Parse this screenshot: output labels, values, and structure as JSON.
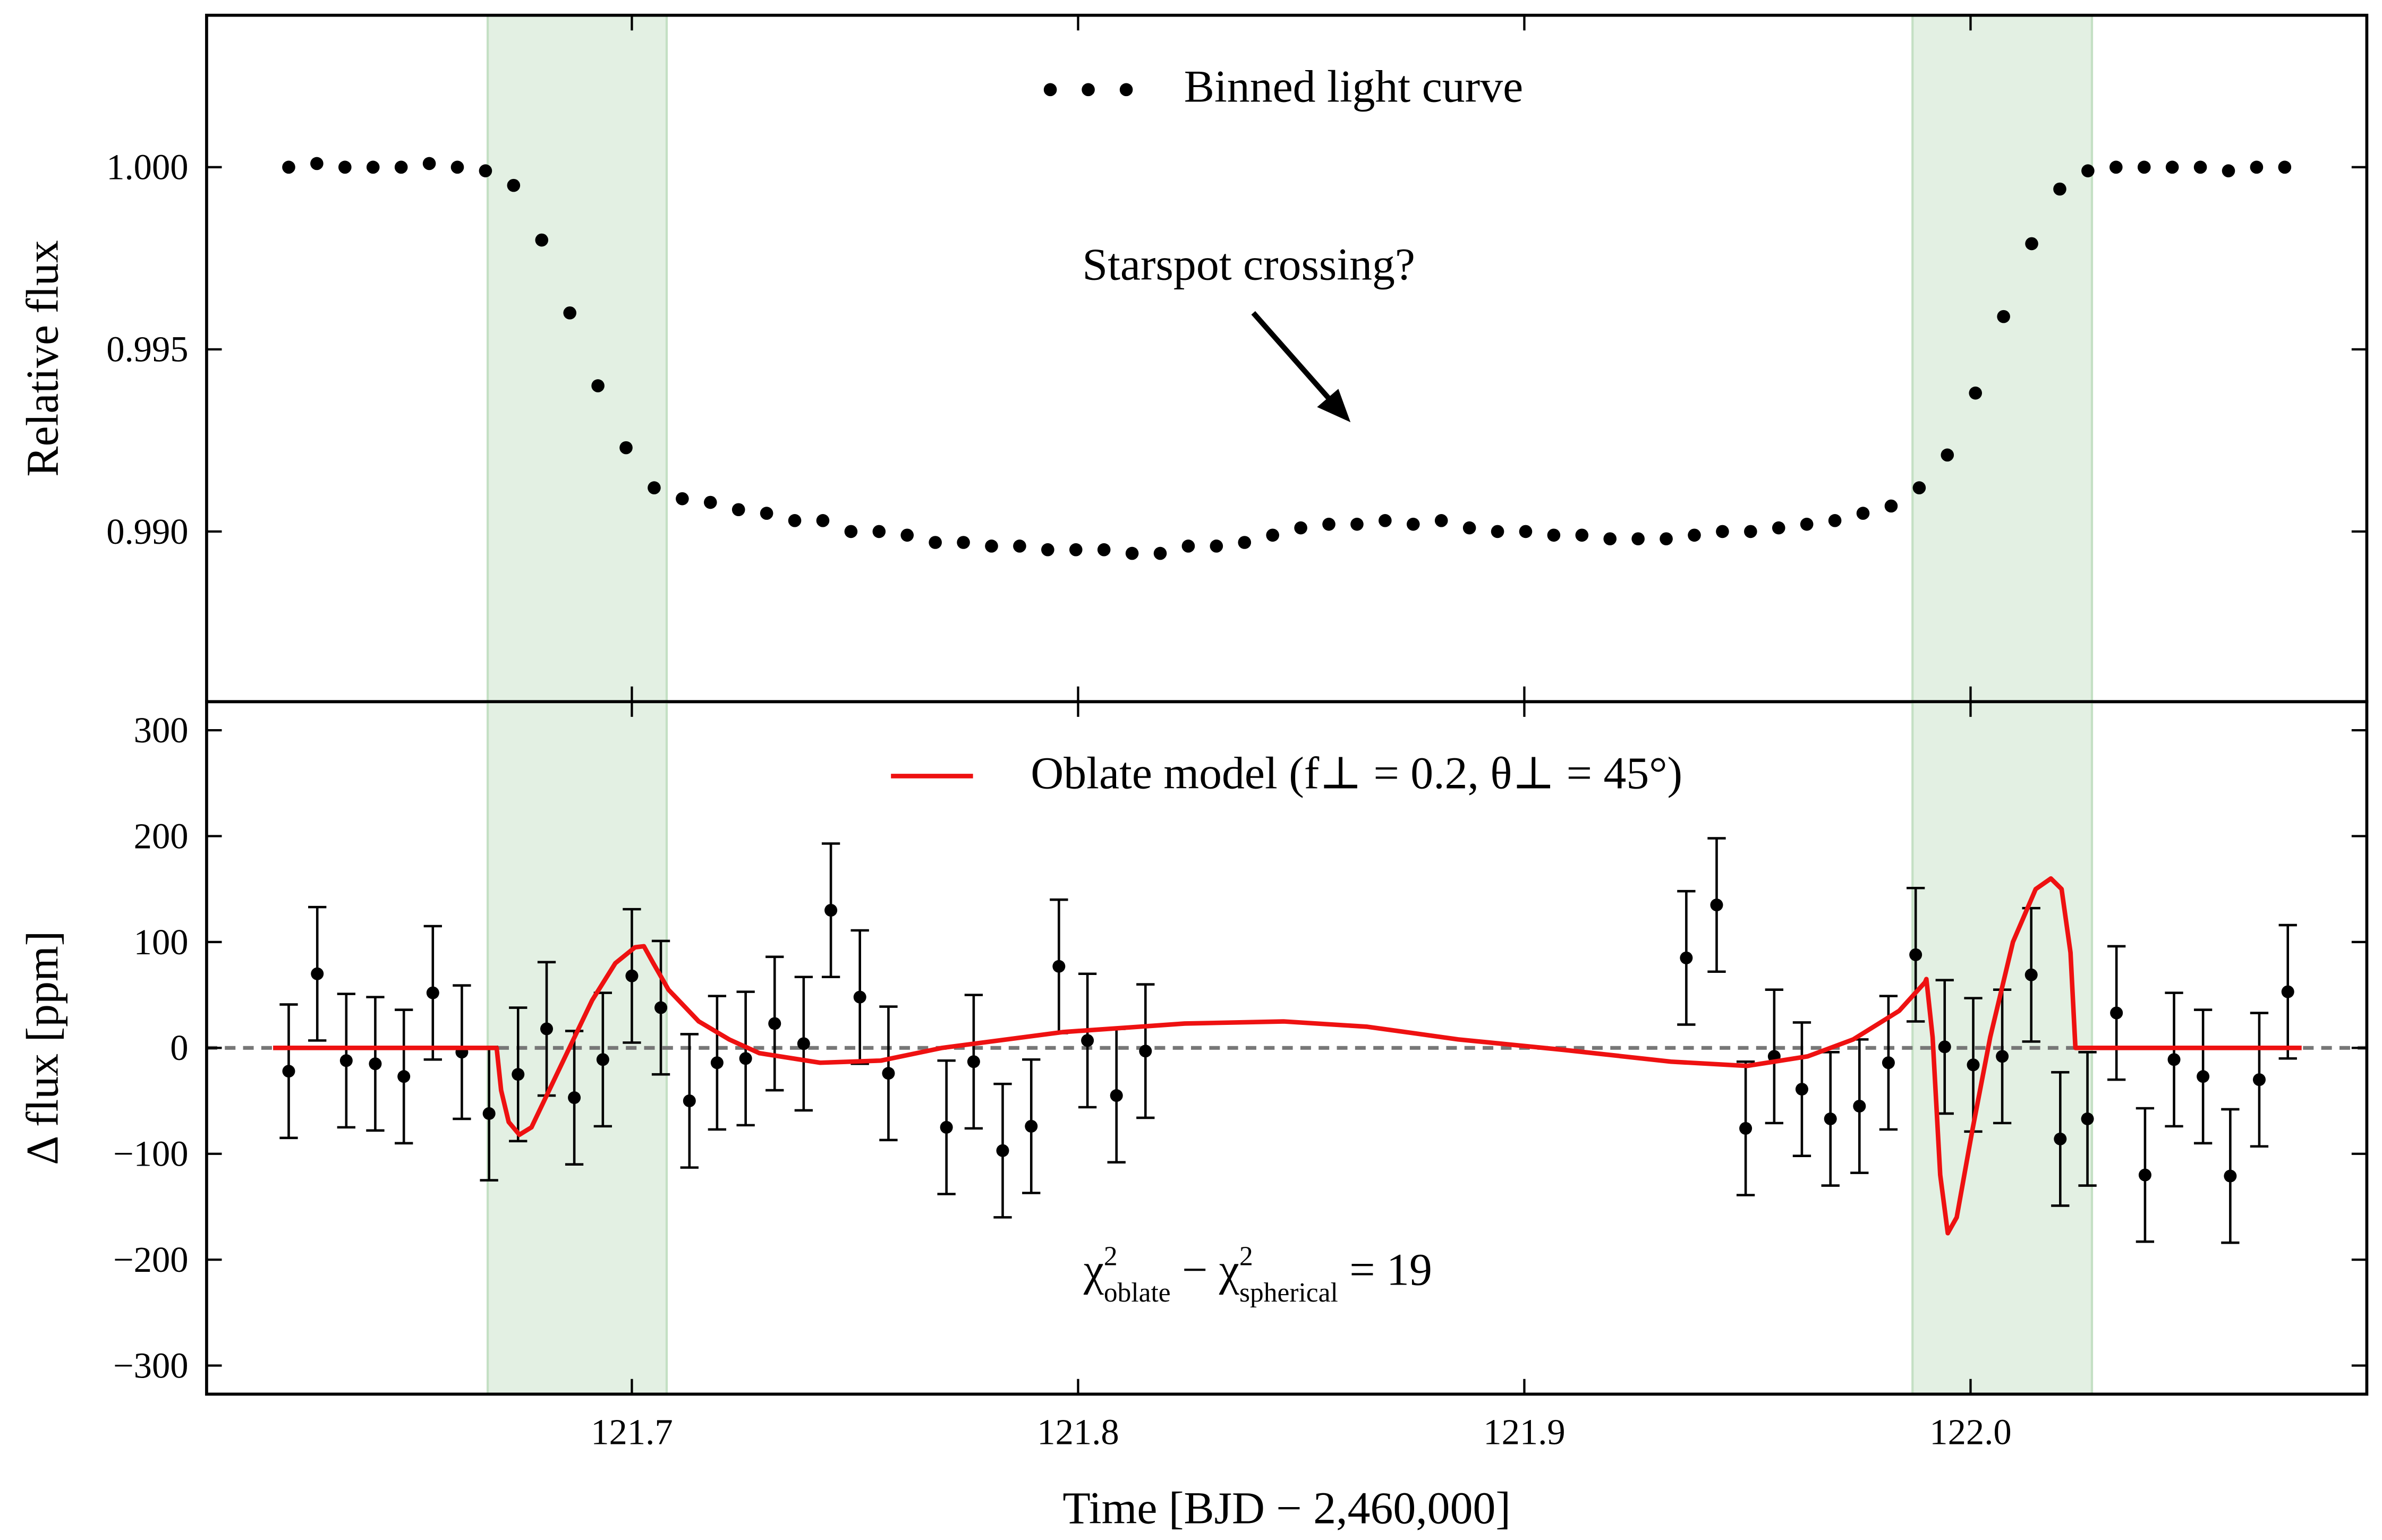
{
  "chart_data": [
    {
      "type": "scatter",
      "ylabel": "Relative flux",
      "xlim": [
        121.6047,
        122.0888
      ],
      "xticks": [
        121.7,
        121.8,
        121.9,
        122.0
      ],
      "ylim": [
        0.98533,
        1.00417
      ],
      "yticks": [
        {
          "value": 0.99,
          "label": "0.990"
        },
        {
          "value": 0.995,
          "label": "0.995"
        },
        {
          "value": 1.0,
          "label": "1.000"
        }
      ],
      "shaded_regions": [
        [
          121.6677,
          121.7078
        ],
        [
          121.987,
          122.0272
        ]
      ],
      "shade_color": "#e3f0e3",
      "legend": "upper center",
      "annotation": "Starspot crossing?",
      "series": [
        {
          "name": "Binned light curve",
          "type": "scatter",
          "color": "#000000",
          "x": [
            121.6231,
            121.6294,
            121.6357,
            121.642,
            121.6483,
            121.6546,
            121.6609,
            121.6672,
            121.6735,
            121.6798,
            121.6861,
            121.6924,
            121.6987,
            121.705,
            121.7113,
            121.7176,
            121.7239,
            121.7302,
            121.7365,
            121.7428,
            121.7491,
            121.7554,
            121.7617,
            121.768,
            121.7743,
            121.7806,
            121.7869,
            121.7932,
            121.7995,
            121.8058,
            121.8121,
            121.8184,
            121.8247,
            121.831,
            121.8373,
            121.8436,
            121.8499,
            121.8562,
            121.8625,
            121.8688,
            121.8751,
            121.8814,
            121.8877,
            121.894,
            121.9003,
            121.9066,
            121.9129,
            121.9192,
            121.9255,
            121.9318,
            121.9381,
            121.9444,
            121.9507,
            121.957,
            121.9633,
            121.9696,
            121.9759,
            121.9822,
            121.9885,
            121.9948,
            122.0011,
            122.0074,
            122.0137,
            122.02,
            122.0263,
            122.0326,
            122.0389,
            122.0452,
            122.0515,
            122.0578,
            122.0641,
            122.0704
          ],
          "values": [
            1.0,
            1.0001,
            1.0,
            1.0,
            1.0,
            1.0001,
            1.0,
            0.9999,
            0.9995,
            0.998,
            0.996,
            0.994,
            0.9923,
            0.9912,
            0.9909,
            0.9908,
            0.9906,
            0.9905,
            0.9903,
            0.9903,
            0.99,
            0.99,
            0.9899,
            0.9897,
            0.9897,
            0.9896,
            0.9896,
            0.9895,
            0.9895,
            0.9895,
            0.9894,
            0.9894,
            0.9896,
            0.9896,
            0.9897,
            0.9899,
            0.9901,
            0.9902,
            0.9902,
            0.9903,
            0.9902,
            0.9903,
            0.9901,
            0.99,
            0.99,
            0.9899,
            0.9899,
            0.9898,
            0.9898,
            0.9898,
            0.9899,
            0.99,
            0.99,
            0.9901,
            0.9902,
            0.9903,
            0.9905,
            0.9907,
            0.9912,
            0.9921,
            0.9938,
            0.9959,
            0.9979,
            0.9994,
            0.9999,
            1.0,
            1.0,
            1.0,
            1.0,
            0.9999,
            1.0,
            1.0
          ]
        }
      ]
    },
    {
      "type": "errorbar",
      "ylabel": "Δ flux [ppm]",
      "xlabel": "Time [BJD − 2,460,000]",
      "xlim": [
        121.6047,
        122.0888
      ],
      "xticks": [
        121.7,
        121.8,
        121.9,
        {
          "value": 122.0,
          "label": "122.0"
        }
      ],
      "ylim": [
        -327,
        327
      ],
      "yticks": [
        {
          "value": -300,
          "label": "−300"
        },
        {
          "value": -200,
          "label": "−200"
        },
        {
          "value": -100,
          "label": "−100"
        },
        0,
        100,
        200,
        300
      ],
      "shaded_regions": [
        [
          121.6677,
          121.7078
        ],
        [
          121.987,
          122.0272
        ]
      ],
      "shade_color": "#e3f0e3",
      "hline": 0,
      "hline_color": "#777777",
      "legend": "upper center",
      "annotation_parts": [
        "χ",
        "2",
        "oblate",
        " − χ",
        "2",
        "spherical",
        " = 19"
      ],
      "series": [
        {
          "type": "errorbar",
          "color": "#000000",
          "x": [
            121.6231,
            121.6295,
            121.636,
            121.6425,
            121.6489,
            121.6554,
            121.6619,
            121.668,
            121.6745,
            121.6809,
            121.6871,
            121.6935,
            121.7,
            121.7065,
            121.7129,
            121.7191,
            121.7255,
            121.732,
            121.7385,
            121.7446,
            121.7511,
            121.7575,
            121.7705,
            121.7766,
            121.7831,
            121.7895,
            121.7957,
            121.8021,
            121.8086,
            121.8151,
            121.9363,
            121.9431,
            121.9496,
            121.956,
            121.9622,
            121.9686,
            121.9751,
            121.9816,
            121.9877,
            121.9942,
            122.0006,
            122.0071,
            122.0136,
            122.0201,
            122.0262,
            122.0327,
            122.0391,
            122.0456,
            122.0521,
            122.0582,
            122.0647,
            122.0711
          ],
          "values": [
            -22,
            70,
            -12,
            -15,
            -27,
            52,
            -4,
            -62,
            -25,
            18,
            -47,
            -11,
            68,
            38,
            -50,
            -14,
            -10,
            23,
            4,
            130,
            48,
            -24,
            -75,
            -13,
            -97,
            -74,
            77,
            7,
            -45,
            -3,
            85,
            135,
            -76,
            -8,
            -39,
            -67,
            -55,
            -14,
            88,
            1,
            -16,
            -8,
            69,
            -86,
            -67,
            33,
            -120,
            -11,
            -27,
            -121,
            -30,
            53
          ],
          "errors": [
            63,
            63,
            63,
            63,
            63,
            63,
            63,
            63,
            63,
            63,
            63,
            63,
            63,
            63,
            63,
            63,
            63,
            63,
            63,
            63,
            63,
            63,
            63,
            63,
            63,
            63,
            63,
            63,
            63,
            63,
            63,
            63,
            63,
            63,
            63,
            63,
            63,
            63,
            63,
            63,
            63,
            63,
            63,
            63,
            63,
            63,
            63,
            63,
            63,
            63,
            63,
            63
          ]
        },
        {
          "name": "Oblate model (f⊥ = 0.2, θ⊥ = 45°)",
          "type": "line",
          "color": "#ee1111",
          "x": [
            121.6196,
            121.6697,
            121.6707,
            121.6724,
            121.6748,
            121.6775,
            121.6809,
            121.686,
            121.6911,
            121.6963,
            121.7007,
            121.7027,
            121.7048,
            121.7082,
            121.715,
            121.7218,
            121.7286,
            121.7422,
            121.7558,
            121.7695,
            121.7967,
            121.8239,
            121.8461,
            121.8648,
            121.8852,
            121.9091,
            121.9329,
            121.9499,
            121.9635,
            121.9737,
            121.984,
            121.9898,
            121.9901,
            121.9915,
            121.9932,
            121.9949,
            121.9969,
            122.0003,
            122.0044,
            122.0095,
            122.0146,
            122.018,
            122.0204,
            122.0224,
            122.0235,
            122.0742
          ],
          "values": [
            0,
            0,
            -40,
            -70,
            -82,
            -75,
            -45,
            0,
            45,
            80,
            95,
            96,
            80,
            55,
            25,
            8,
            -5,
            -14,
            -12,
            0,
            15,
            23,
            25,
            20,
            8,
            -2,
            -13,
            -17,
            -8,
            8,
            35,
            62,
            65,
            10,
            -120,
            -175,
            -160,
            -80,
            10,
            100,
            150,
            160,
            150,
            90,
            0,
            0
          ]
        }
      ]
    }
  ]
}
